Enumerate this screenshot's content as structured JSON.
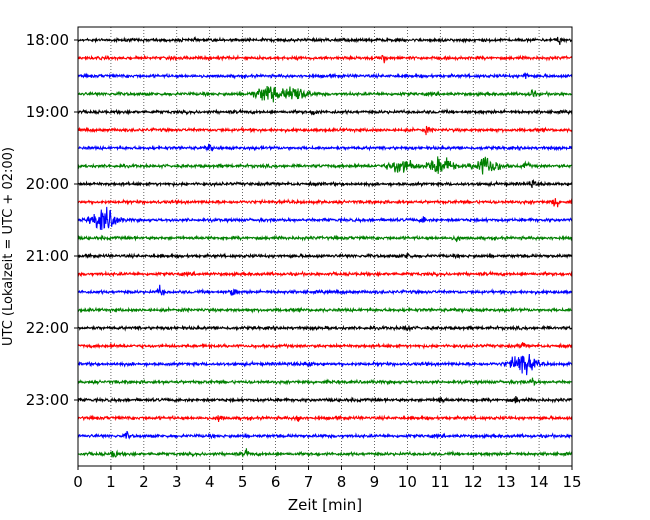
{
  "chart_data": {
    "type": "line",
    "title": "",
    "xlabel": "Zeit  [min]",
    "ylabel": "UTC (Lokalzeit = UTC + 02:00)",
    "xlim": [
      0,
      15
    ],
    "x_ticks": [
      0,
      1,
      2,
      3,
      4,
      5,
      6,
      7,
      8,
      9,
      10,
      11,
      12,
      13,
      14,
      15
    ],
    "y_ticks": [
      {
        "value": "18:00",
        "label": "18:00"
      },
      {
        "value": "19:00",
        "label": "19:00"
      },
      {
        "value": "20:00",
        "label": "20:00"
      },
      {
        "value": "21:00",
        "label": "21:00"
      },
      {
        "value": "22:00",
        "label": "22:00"
      },
      {
        "value": "23:00",
        "label": "23:00"
      }
    ],
    "x_grid": true,
    "color_cycle": [
      "#000000",
      "#ff0000",
      "#0000ff",
      "#008000"
    ],
    "traces": [
      {
        "start": "18:00",
        "color": "#000000",
        "bursts": [
          {
            "t": 14.6,
            "amp": 0.5
          }
        ]
      },
      {
        "start": "18:15",
        "color": "#ff0000",
        "bursts": [
          {
            "t": 9.3,
            "amp": 0.4
          }
        ]
      },
      {
        "start": "18:30",
        "color": "#0000ff",
        "bursts": [
          {
            "t": 13.6,
            "amp": 0.4
          }
        ]
      },
      {
        "start": "18:45",
        "color": "#008000",
        "bursts": [
          {
            "t": 5.75,
            "amp": 1.0
          },
          {
            "t": 6.6,
            "amp": 0.9
          },
          {
            "t": 13.8,
            "amp": 0.6
          }
        ]
      },
      {
        "start": "19:00",
        "color": "#000000",
        "bursts": [
          {
            "t": 7.2,
            "amp": 0.5
          }
        ]
      },
      {
        "start": "19:15",
        "color": "#ff0000",
        "bursts": [
          {
            "t": 10.6,
            "amp": 0.4
          }
        ]
      },
      {
        "start": "19:30",
        "color": "#0000ff",
        "bursts": [
          {
            "t": 4.0,
            "amp": 0.4
          }
        ]
      },
      {
        "start": "19:45",
        "color": "#008000",
        "bursts": [
          {
            "t": 9.8,
            "amp": 0.9
          },
          {
            "t": 11.0,
            "amp": 1.1
          },
          {
            "t": 12.4,
            "amp": 1.1
          },
          {
            "t": 13.6,
            "amp": 0.5
          }
        ]
      },
      {
        "start": "20:00",
        "color": "#000000",
        "bursts": [
          {
            "t": 13.8,
            "amp": 0.4
          }
        ]
      },
      {
        "start": "20:15",
        "color": "#ff0000",
        "bursts": [
          {
            "t": 14.5,
            "amp": 0.8
          }
        ]
      },
      {
        "start": "20:30",
        "color": "#0000ff",
        "bursts": [
          {
            "t": 0.8,
            "amp": 1.3
          },
          {
            "t": 10.5,
            "amp": 0.4
          }
        ]
      },
      {
        "start": "20:45",
        "color": "#008000",
        "bursts": [
          {
            "t": 11.5,
            "amp": 0.4
          }
        ]
      },
      {
        "start": "21:00",
        "color": "#000000",
        "bursts": [
          {
            "t": 10.0,
            "amp": 0.5
          }
        ]
      },
      {
        "start": "21:15",
        "color": "#ff0000",
        "bursts": []
      },
      {
        "start": "21:30",
        "color": "#0000ff",
        "bursts": [
          {
            "t": 2.5,
            "amp": 0.6
          },
          {
            "t": 4.7,
            "amp": 0.5
          }
        ]
      },
      {
        "start": "21:45",
        "color": "#008000",
        "bursts": []
      },
      {
        "start": "22:00",
        "color": "#000000",
        "bursts": [
          {
            "t": 10.0,
            "amp": 0.4
          }
        ]
      },
      {
        "start": "22:15",
        "color": "#ff0000",
        "bursts": [
          {
            "t": 13.5,
            "amp": 0.4
          }
        ]
      },
      {
        "start": "22:30",
        "color": "#0000ff",
        "bursts": [
          {
            "t": 7.0,
            "amp": 0.4
          },
          {
            "t": 13.5,
            "amp": 1.3
          }
        ]
      },
      {
        "start": "22:45",
        "color": "#008000",
        "bursts": [
          {
            "t": 13.8,
            "amp": 0.4
          }
        ]
      },
      {
        "start": "23:00",
        "color": "#000000",
        "bursts": [
          {
            "t": 11.0,
            "amp": 0.5
          },
          {
            "t": 13.3,
            "amp": 0.4
          }
        ]
      },
      {
        "start": "23:15",
        "color": "#ff0000",
        "bursts": [
          {
            "t": 6.7,
            "amp": 0.5
          },
          {
            "t": 4.3,
            "amp": 0.4
          }
        ]
      },
      {
        "start": "23:30",
        "color": "#0000ff",
        "bursts": [
          {
            "t": 1.5,
            "amp": 0.4
          }
        ]
      },
      {
        "start": "23:45",
        "color": "#008000",
        "bursts": [
          {
            "t": 1.1,
            "amp": 0.5
          },
          {
            "t": 5.1,
            "amp": 0.4
          }
        ]
      }
    ]
  }
}
